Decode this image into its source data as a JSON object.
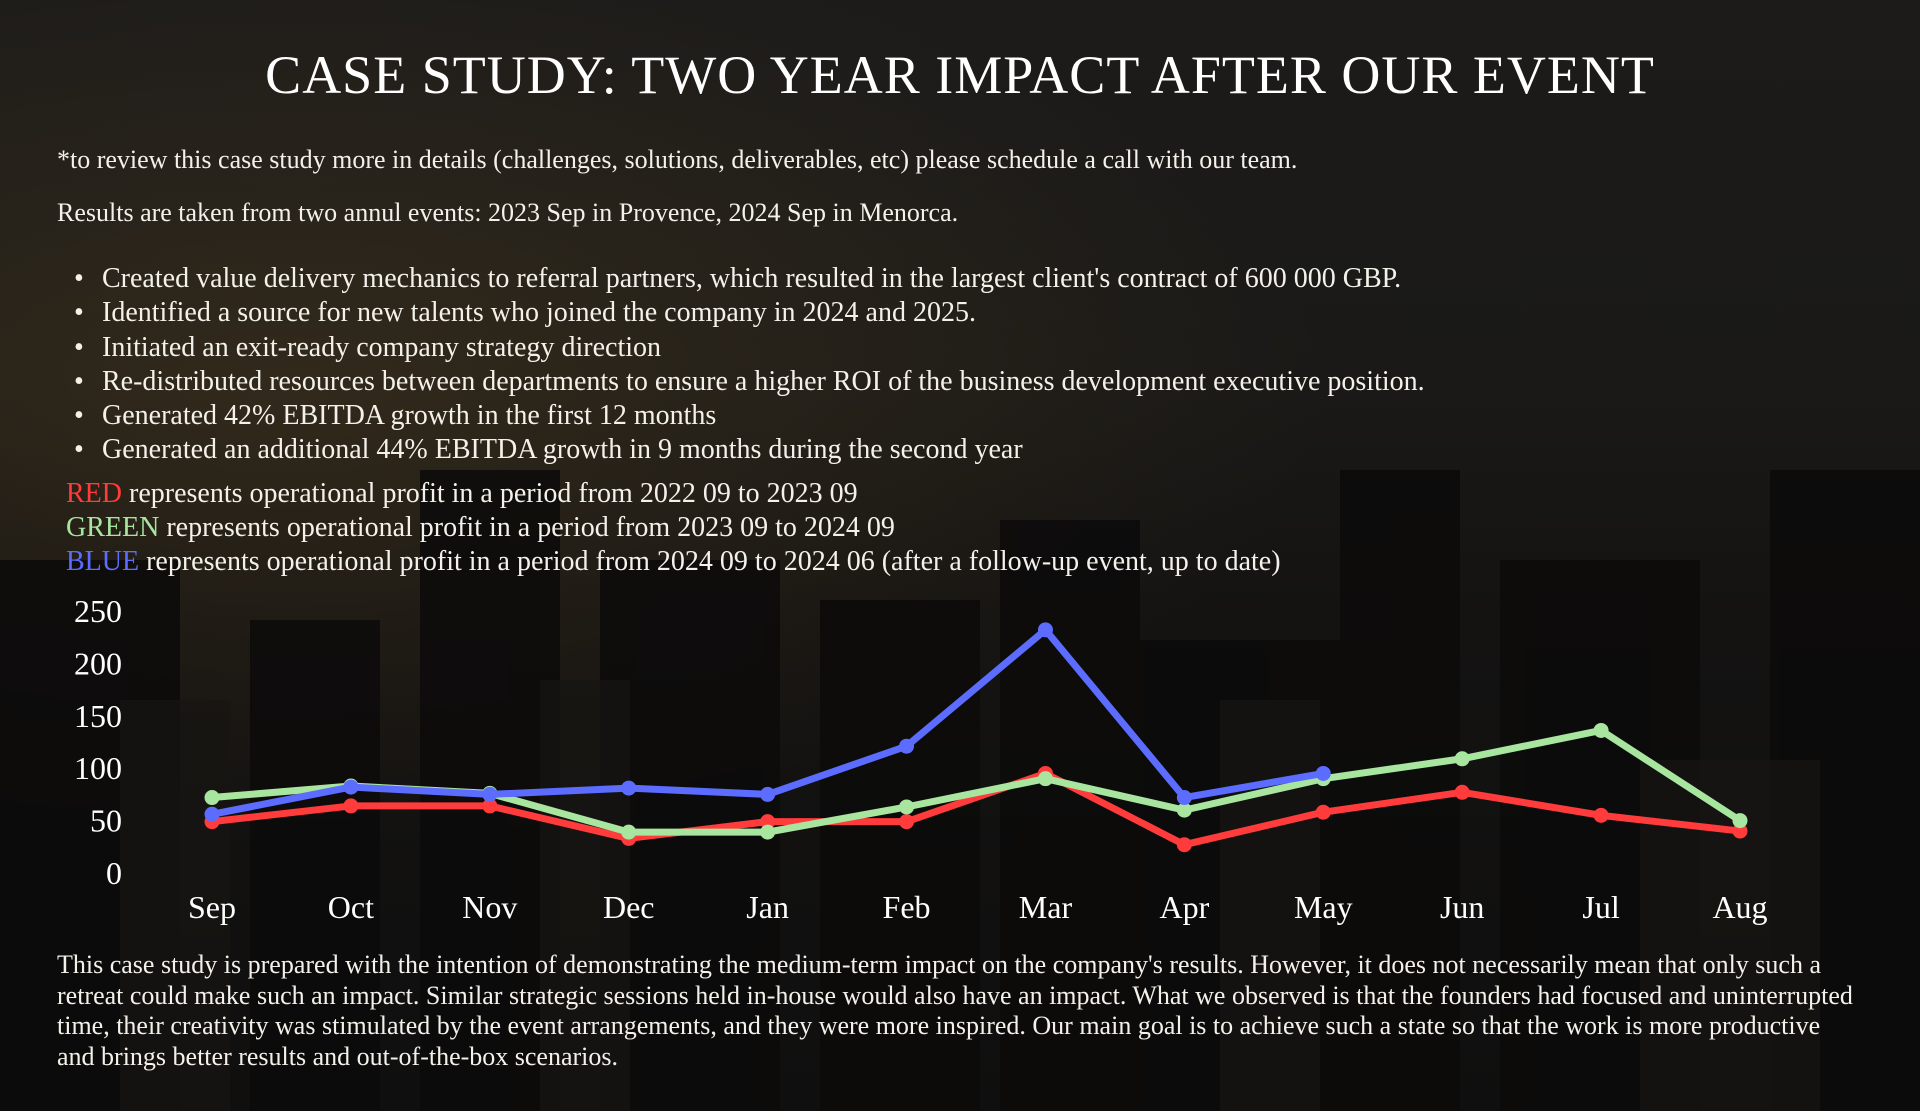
{
  "title": "CASE STUDY: TWO YEAR IMPACT AFTER OUR EVENT",
  "notes": [
    "*to review this case study more in details (challenges, solutions, deliverables, etc) please schedule a call with our team.",
    "Results are taken from two annul events: 2023 Sep in Provence, 2024 Sep in Menorca."
  ],
  "bullets": [
    "Created value delivery mechanics to referral partners, which resulted in the largest client's contract of 600 000 GBP.",
    "Identified a source for new talents who joined the company in 2024 and 2025.",
    "Initiated an exit-ready company strategy direction",
    "Re-distributed resources between departments to ensure a higher ROI of the business development executive position.",
    "Generated 42% EBITDA growth in the first 12 months",
    "Generated an additional 44% EBITDA growth in 9 months during the second year"
  ],
  "bullet_glyph": "•",
  "legend": [
    {
      "key": "RED",
      "text": " represents operational profit in a period from 2022 09 to 2023 09",
      "color": "#ff3b3b"
    },
    {
      "key": "GREEN",
      "text": " represents operational profit in a period from 2023 09 to 2024 09",
      "color": "#a8e6a0"
    },
    {
      "key": "BLUE",
      "text": " represents operational profit in a period from 2024 09 to 2024 06 (after a follow-up event, up to date)",
      "color": "#5b6cff"
    }
  ],
  "footer": "This case study is prepared with the intention of demonstrating the medium-term impact on the company's results. However, it does not necessarily mean that only such a retreat could make such an impact. Similar strategic sessions held in-house would also have an impact. What we observed is that the founders had focused and uninterrupted time, their creativity was stimulated by the event arrangements, and they were more inspired. Our main goal is to achieve such a state so that the work is more productive and brings better results and out-of-the-box scenarios.",
  "chart_data": {
    "type": "line",
    "title": "",
    "xlabel": "",
    "ylabel": "",
    "categories": [
      "Sep",
      "Oct",
      "Nov",
      "Dec",
      "Jan",
      "Feb",
      "Mar",
      "Apr",
      "May",
      "Jun",
      "Jul",
      "Aug"
    ],
    "yticks": [
      0,
      50,
      100,
      150,
      200,
      250
    ],
    "ylim": [
      0,
      250
    ],
    "grid": false,
    "legend": "none (described in text above chart)",
    "series": [
      {
        "name": "RED",
        "color": "#ff3b3b",
        "values": [
          49,
          64,
          64,
          33,
          49,
          49,
          95,
          27,
          58,
          77,
          55,
          40
        ]
      },
      {
        "name": "GREEN",
        "color": "#a8e6a0",
        "values": [
          72,
          83,
          76,
          39,
          39,
          63,
          90,
          60,
          90,
          109,
          136,
          50
        ]
      },
      {
        "name": "BLUE",
        "color": "#5b6cff",
        "values": [
          56,
          82,
          75,
          81,
          75,
          121,
          232,
          72,
          95
        ]
      }
    ]
  }
}
